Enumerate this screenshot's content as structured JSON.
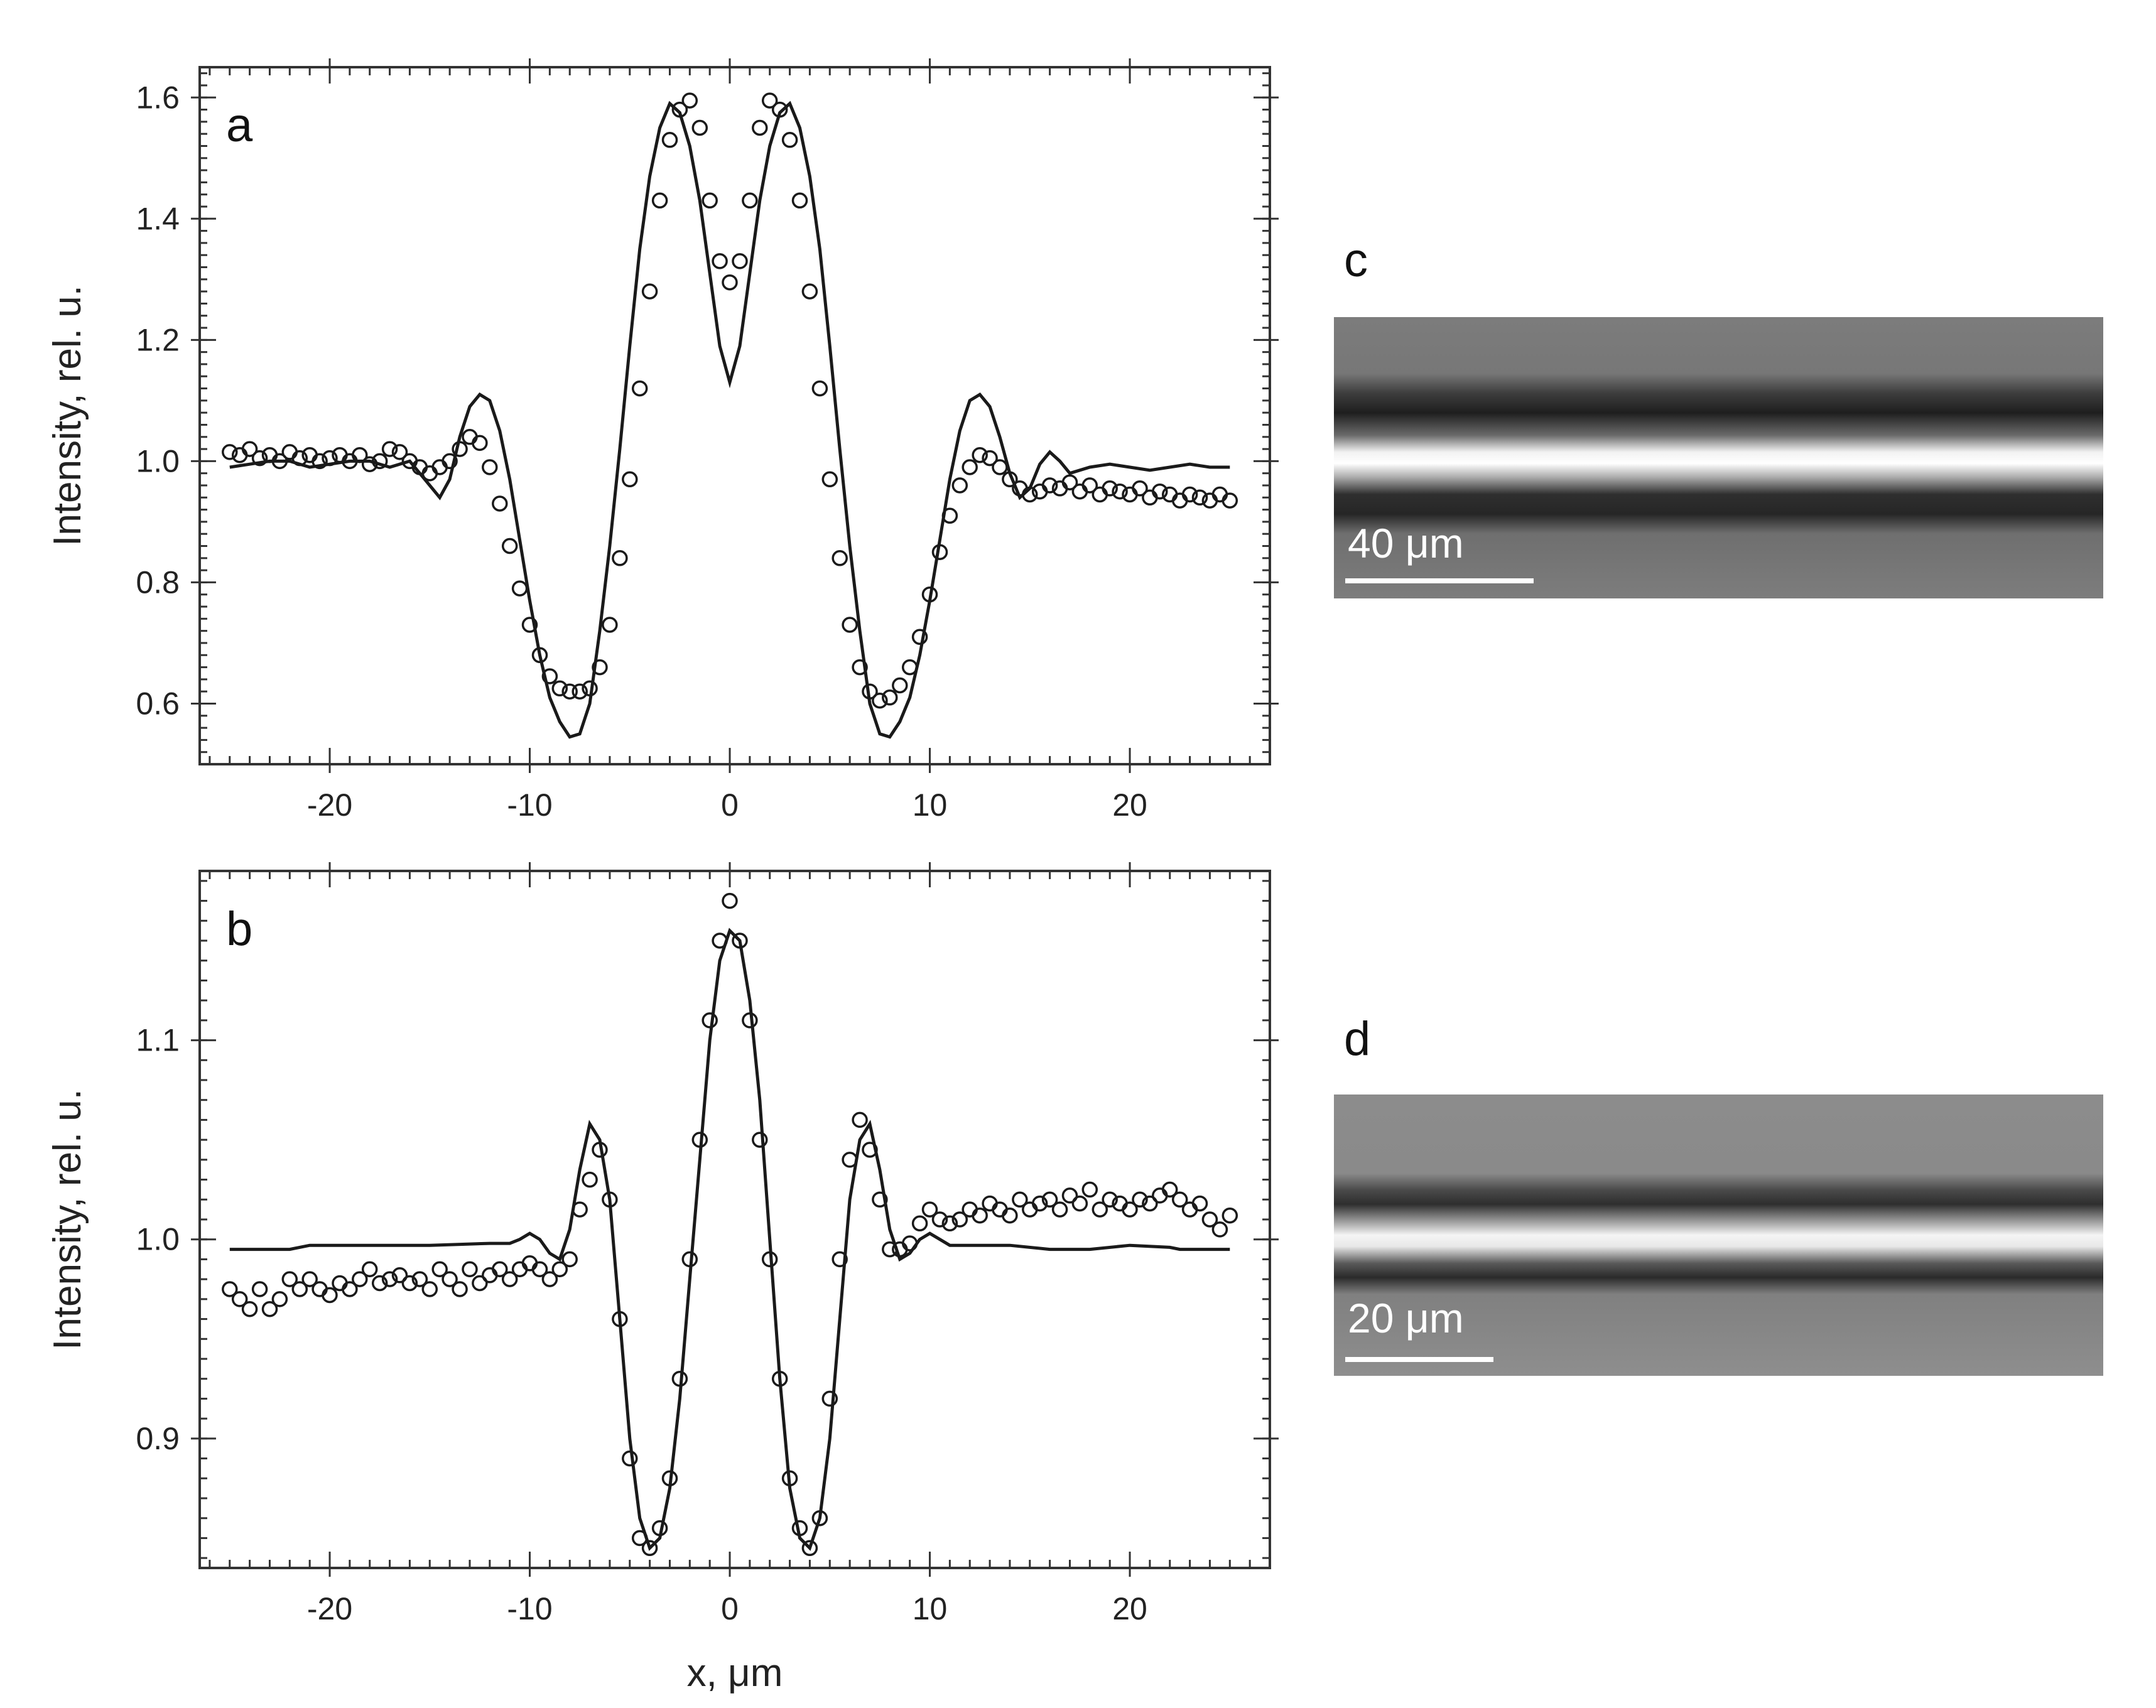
{
  "chart_data": [
    {
      "type": "scatter",
      "panel_label": "a",
      "xlabel": "",
      "ylabel": "Intensity, rel. u.",
      "xlim": [
        -26.5,
        27
      ],
      "ylim": [
        0.5,
        1.65
      ],
      "x_ticks": [
        -20,
        -10,
        0,
        10,
        20
      ],
      "y_ticks": [
        0.6,
        0.8,
        1.0,
        1.2,
        1.4,
        1.6
      ],
      "x_tick_labels": [
        "-20",
        "-10",
        "0",
        "10",
        "20"
      ],
      "y_tick_labels": [
        "0.6",
        "0.8",
        "1.0",
        "1.2",
        "1.4",
        "1.6"
      ],
      "grid": false,
      "series": [
        {
          "style": "line",
          "x": [
            -25,
            -24,
            -23,
            -22,
            -21,
            -20,
            -19,
            -18,
            -17,
            -16,
            -15,
            -14.5,
            -14,
            -13.5,
            -13,
            -12.5,
            -12,
            -11.5,
            -11,
            -10.5,
            -10,
            -9.5,
            -9,
            -8.5,
            -8,
            -7.5,
            -7,
            -6.5,
            -6,
            -5.5,
            -5,
            -4.5,
            -4,
            -3.5,
            -3,
            -2.5,
            -2,
            -1.5,
            -1,
            -0.5,
            0,
            0.5,
            1,
            1.5,
            2,
            2.5,
            3,
            3.5,
            4,
            4.5,
            5,
            5.5,
            6,
            6.5,
            7,
            7.5,
            8,
            8.5,
            9,
            9.5,
            10,
            10.5,
            11,
            11.5,
            12,
            12.5,
            13,
            13.5,
            14,
            14.5,
            15,
            15.5,
            16,
            16.5,
            17,
            18,
            19,
            20,
            21,
            22,
            23,
            24,
            25
          ],
          "y": [
            0.99,
            0.995,
            1.0,
            1.0,
            0.99,
            0.995,
            1.0,
            1.0,
            0.99,
            1.0,
            0.96,
            0.94,
            0.97,
            1.04,
            1.09,
            1.11,
            1.1,
            1.05,
            0.97,
            0.87,
            0.77,
            0.68,
            0.61,
            0.57,
            0.545,
            0.55,
            0.6,
            0.72,
            0.86,
            1.02,
            1.19,
            1.35,
            1.47,
            1.55,
            1.59,
            1.575,
            1.52,
            1.43,
            1.31,
            1.19,
            1.13,
            1.19,
            1.31,
            1.43,
            1.52,
            1.575,
            1.59,
            1.55,
            1.47,
            1.35,
            1.19,
            1.02,
            0.86,
            0.72,
            0.6,
            0.55,
            0.545,
            0.57,
            0.61,
            0.68,
            0.77,
            0.87,
            0.97,
            1.05,
            1.1,
            1.11,
            1.09,
            1.04,
            0.98,
            0.94,
            0.955,
            0.995,
            1.015,
            1.0,
            0.98,
            0.99,
            0.995,
            0.99,
            0.985,
            0.99,
            0.995,
            0.99,
            0.99
          ]
        },
        {
          "style": "markers",
          "x": [
            -25,
            -24.5,
            -24,
            -23.5,
            -23,
            -22.5,
            -22,
            -21.5,
            -21,
            -20.5,
            -20,
            -19.5,
            -19,
            -18.5,
            -18,
            -17.5,
            -17,
            -16.5,
            -16,
            -15.5,
            -15,
            -14.5,
            -14,
            -13.5,
            -13,
            -12.5,
            -12,
            -11.5,
            -11,
            -10.5,
            -10,
            -9.5,
            -9,
            -8.5,
            -8,
            -7.5,
            -7,
            -6.5,
            -6,
            -5.5,
            -5,
            -4.5,
            -4,
            -3.5,
            -3,
            -2.5,
            -2,
            -1.5,
            -1,
            -0.5,
            0,
            0.5,
            1,
            1.5,
            2,
            2.5,
            3,
            3.5,
            4,
            4.5,
            5,
            5.5,
            6,
            6.5,
            7,
            7.5,
            8,
            8.5,
            9,
            9.5,
            10,
            10.5,
            11,
            11.5,
            12,
            12.5,
            13,
            13.5,
            14,
            14.5,
            15,
            15.5,
            16,
            16.5,
            17,
            17.5,
            18,
            18.5,
            19,
            19.5,
            20,
            20.5,
            21,
            21.5,
            22,
            22.5,
            23,
            23.5,
            24,
            24.5,
            25
          ],
          "y": [
            1.015,
            1.01,
            1.02,
            1.005,
            1.01,
            1.0,
            1.015,
            1.005,
            1.01,
            1.0,
            1.005,
            1.01,
            1.0,
            1.01,
            0.995,
            1.0,
            1.02,
            1.015,
            1.0,
            0.99,
            0.98,
            0.99,
            1.0,
            1.02,
            1.04,
            1.03,
            0.99,
            0.93,
            0.86,
            0.79,
            0.73,
            0.68,
            0.645,
            0.625,
            0.62,
            0.62,
            0.625,
            0.66,
            0.73,
            0.84,
            0.97,
            1.12,
            1.28,
            1.43,
            1.53,
            1.58,
            1.595,
            1.55,
            1.43,
            1.33,
            1.295,
            1.33,
            1.43,
            1.55,
            1.595,
            1.58,
            1.53,
            1.43,
            1.28,
            1.12,
            0.97,
            0.84,
            0.73,
            0.66,
            0.62,
            0.605,
            0.61,
            0.63,
            0.66,
            0.71,
            0.78,
            0.85,
            0.91,
            0.96,
            0.99,
            1.01,
            1.005,
            0.99,
            0.97,
            0.955,
            0.945,
            0.95,
            0.96,
            0.955,
            0.965,
            0.95,
            0.96,
            0.945,
            0.955,
            0.95,
            0.945,
            0.955,
            0.94,
            0.95,
            0.945,
            0.935,
            0.945,
            0.94,
            0.935,
            0.945,
            0.935
          ]
        }
      ]
    },
    {
      "type": "scatter",
      "panel_label": "b",
      "xlabel": "x, μm",
      "ylabel": "Intensity, rel. u.",
      "xlim": [
        -26.5,
        27
      ],
      "ylim": [
        0.835,
        1.185
      ],
      "x_ticks": [
        -20,
        -10,
        0,
        10,
        20
      ],
      "y_ticks": [
        0.9,
        1.0,
        1.1
      ],
      "x_tick_labels": [
        "-20",
        "-10",
        "0",
        "10",
        "20"
      ],
      "y_tick_labels": [
        "0.9",
        "1.0",
        "1.1"
      ],
      "grid": false,
      "series": [
        {
          "style": "line",
          "x": [
            -25,
            -22,
            -21,
            -18,
            -15,
            -12,
            -11,
            -10.5,
            -10,
            -9.5,
            -9,
            -8.5,
            -8,
            -7.5,
            -7,
            -6.5,
            -6,
            -5.5,
            -5,
            -4.5,
            -4,
            -3.5,
            -3,
            -2.5,
            -2,
            -1.5,
            -1,
            -0.5,
            0,
            0.5,
            1,
            1.5,
            2,
            2.5,
            3,
            3.5,
            4,
            4.5,
            5,
            5.5,
            6,
            6.5,
            7,
            7.5,
            8,
            8.5,
            9,
            9.5,
            10,
            10.5,
            11,
            14,
            16,
            18,
            20,
            22,
            22.5,
            25
          ],
          "y": [
            0.995,
            0.995,
            0.997,
            0.997,
            0.997,
            0.998,
            0.998,
            1.0,
            1.003,
            1.0,
            0.993,
            0.99,
            1.005,
            1.035,
            1.058,
            1.05,
            1.02,
            0.96,
            0.9,
            0.86,
            0.845,
            0.85,
            0.875,
            0.92,
            0.98,
            1.04,
            1.1,
            1.14,
            1.155,
            1.15,
            1.12,
            1.07,
            1.0,
            0.93,
            0.875,
            0.85,
            0.845,
            0.86,
            0.9,
            0.96,
            1.02,
            1.05,
            1.058,
            1.035,
            1.005,
            0.99,
            0.993,
            1.0,
            1.003,
            1.0,
            0.997,
            0.997,
            0.995,
            0.995,
            0.997,
            0.996,
            0.995,
            0.995
          ]
        },
        {
          "style": "markers",
          "x": [
            -25,
            -24.5,
            -24,
            -23.5,
            -23,
            -22.5,
            -22,
            -21.5,
            -21,
            -20.5,
            -20,
            -19.5,
            -19,
            -18.5,
            -18,
            -17.5,
            -17,
            -16.5,
            -16,
            -15.5,
            -15,
            -14.5,
            -14,
            -13.5,
            -13,
            -12.5,
            -12,
            -11.5,
            -11,
            -10.5,
            -10,
            -9.5,
            -9,
            -8.5,
            -8,
            -7.5,
            -7,
            -6.5,
            -6,
            -5.5,
            -5,
            -4.5,
            -4,
            -3.5,
            -3,
            -2.5,
            -2,
            -1.5,
            -1,
            -0.5,
            0,
            0.5,
            1,
            1.5,
            2,
            2.5,
            3,
            3.5,
            4,
            4.5,
            5,
            5.5,
            6,
            6.5,
            7,
            7.5,
            8,
            8.5,
            9,
            9.5,
            10,
            10.5,
            11,
            11.5,
            12,
            12.5,
            13,
            13.5,
            14,
            14.5,
            15,
            15.5,
            16,
            16.5,
            17,
            17.5,
            18,
            18.5,
            19,
            19.5,
            20,
            20.5,
            21,
            21.5,
            22,
            22.5,
            23,
            23.5,
            24,
            24.5,
            25
          ],
          "y": [
            0.975,
            0.97,
            0.965,
            0.975,
            0.965,
            0.97,
            0.98,
            0.975,
            0.98,
            0.975,
            0.972,
            0.978,
            0.975,
            0.98,
            0.985,
            0.978,
            0.98,
            0.982,
            0.978,
            0.98,
            0.975,
            0.985,
            0.98,
            0.975,
            0.985,
            0.978,
            0.982,
            0.985,
            0.98,
            0.985,
            0.988,
            0.985,
            0.98,
            0.985,
            0.99,
            1.015,
            1.03,
            1.045,
            1.02,
            0.96,
            0.89,
            0.85,
            0.845,
            0.855,
            0.88,
            0.93,
            0.99,
            1.05,
            1.11,
            1.15,
            1.17,
            1.15,
            1.11,
            1.05,
            0.99,
            0.93,
            0.88,
            0.855,
            0.845,
            0.86,
            0.92,
            0.99,
            1.04,
            1.06,
            1.045,
            1.02,
            0.995,
            0.995,
            0.998,
            1.008,
            1.015,
            1.01,
            1.008,
            1.01,
            1.015,
            1.012,
            1.018,
            1.015,
            1.012,
            1.02,
            1.015,
            1.018,
            1.02,
            1.015,
            1.022,
            1.018,
            1.025,
            1.015,
            1.02,
            1.018,
            1.015,
            1.02,
            1.018,
            1.022,
            1.025,
            1.02,
            1.015,
            1.018,
            1.01,
            1.005,
            1.012
          ]
        }
      ]
    }
  ],
  "images": [
    {
      "panel_label": "c",
      "scale_bar_label": "40 μm"
    },
    {
      "panel_label": "d",
      "scale_bar_label": "20 μm"
    }
  ],
  "colors": {
    "line": "#1a1a1a",
    "marker_edge": "#1a1a1a",
    "axis": "#333333"
  }
}
